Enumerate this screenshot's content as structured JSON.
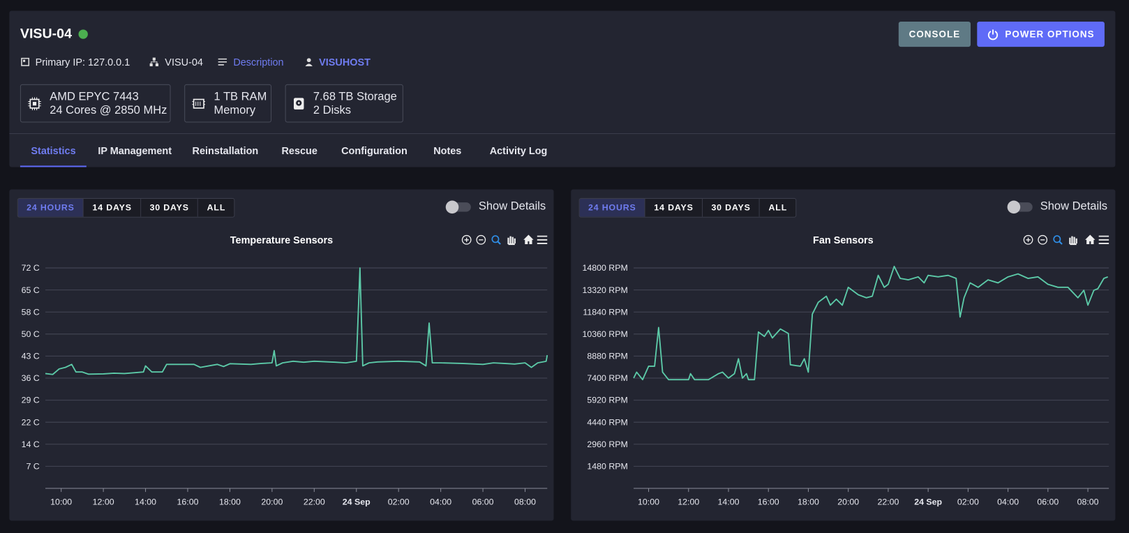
{
  "header": {
    "title": "VISU-04",
    "buttons": [
      "CONSOLE",
      "POWER OPTIONS"
    ],
    "info": {
      "ip": "Primary IP: 127.0.0.1",
      "hostname": "VISU-04",
      "description": "Description",
      "owner": "VISUHOST"
    },
    "specs": [
      {
        "line1": "AMD EPYC 7443",
        "line2": "24 Cores @ 2850 MHz"
      },
      {
        "line1": "1 TB RAM",
        "line2": "Memory"
      },
      {
        "line1": "7.68 TB Storage",
        "line2": "2 Disks"
      }
    ]
  },
  "tabs": [
    "Statistics",
    "IP Management",
    "Reinstallation",
    "Rescue",
    "Configuration",
    "Notes",
    "Activity Log"
  ],
  "panels": [
    {
      "ranges": [
        "24 HOURS",
        "14 DAYS",
        "30 DAYS",
        "ALL"
      ],
      "toggle": "Show Details"
    },
    {
      "ranges": [
        "24 HOURS",
        "14 DAYS",
        "30 DAYS",
        "ALL"
      ],
      "toggle": "Show Details"
    }
  ],
  "chart_data": [
    {
      "type": "line",
      "title": "Temperature Sensors",
      "color": "#5ccaa8",
      "grid": true,
      "xlim": [
        9.25,
        33.05
      ],
      "ylim": [
        0,
        72
      ],
      "xticks": [
        {
          "value": 10,
          "label": "10:00"
        },
        {
          "value": 12,
          "label": "12:00"
        },
        {
          "value": 14,
          "label": "14:00"
        },
        {
          "value": 16,
          "label": "16:00"
        },
        {
          "value": 18,
          "label": "18:00"
        },
        {
          "value": 20,
          "label": "20:00"
        },
        {
          "value": 22,
          "label": "22:00"
        },
        {
          "value": 24,
          "label": "24 Sep"
        },
        {
          "value": 26,
          "label": "02:00"
        },
        {
          "value": 28,
          "label": "04:00"
        },
        {
          "value": 30,
          "label": "06:00"
        },
        {
          "value": 32,
          "label": "08:00"
        }
      ],
      "yticks": [
        {
          "value": 7.2,
          "label": "7 C"
        },
        {
          "value": 14.4,
          "label": "14 C"
        },
        {
          "value": 21.6,
          "label": "22 C"
        },
        {
          "value": 28.8,
          "label": "29 C"
        },
        {
          "value": 36,
          "label": "36 C"
        },
        {
          "value": 43.2,
          "label": "43 C"
        },
        {
          "value": 50.4,
          "label": "50 C"
        },
        {
          "value": 57.6,
          "label": "58 C"
        },
        {
          "value": 64.8,
          "label": "65 C"
        },
        {
          "value": 72,
          "label": "72 C"
        }
      ],
      "x": [
        9.25,
        9.6,
        9.9,
        10.2,
        10.5,
        10.7,
        11,
        11.3,
        12,
        12.5,
        13,
        13.5,
        13.9,
        14.0,
        14.3,
        14.8,
        15.0,
        15.5,
        16.3,
        16.6,
        17,
        17.4,
        17.7,
        18.0,
        18.5,
        19,
        19.5,
        20,
        20.1,
        20.2,
        20.5,
        21,
        21.5,
        22,
        23,
        23.5,
        24.0,
        24.17,
        24.3,
        24.6,
        25,
        26,
        27,
        27.3,
        27.45,
        27.6,
        28,
        29,
        30,
        30.5,
        31,
        31.5,
        32,
        32.3,
        32.6,
        33,
        33.05
      ],
      "values": [
        37.5,
        37.2,
        39,
        39.5,
        40.5,
        38,
        38,
        37.3,
        37.4,
        37.6,
        37.5,
        37.8,
        38,
        40,
        38,
        38,
        40.5,
        40.5,
        40.5,
        39.5,
        40,
        40.5,
        39.8,
        40.7,
        40.6,
        40.5,
        40.8,
        41,
        45,
        40,
        41,
        41.5,
        41.2,
        41.5,
        41.2,
        41,
        41.5,
        72,
        40,
        41,
        41.3,
        41.5,
        41.3,
        40,
        54,
        41,
        41,
        40.8,
        40.5,
        41,
        40.8,
        40.6,
        41,
        39.5,
        41,
        41.5,
        43.5
      ]
    },
    {
      "type": "line",
      "title": "Fan Sensors",
      "color": "#5ccaa8",
      "grid": true,
      "xlim": [
        9.25,
        33.05
      ],
      "ylim": [
        0,
        14800
      ],
      "xticks": [
        {
          "value": 10,
          "label": "10:00"
        },
        {
          "value": 12,
          "label": "12:00"
        },
        {
          "value": 14,
          "label": "14:00"
        },
        {
          "value": 16,
          "label": "16:00"
        },
        {
          "value": 18,
          "label": "18:00"
        },
        {
          "value": 20,
          "label": "20:00"
        },
        {
          "value": 22,
          "label": "22:00"
        },
        {
          "value": 24,
          "label": "24 Sep"
        },
        {
          "value": 26,
          "label": "02:00"
        },
        {
          "value": 28,
          "label": "04:00"
        },
        {
          "value": 30,
          "label": "06:00"
        },
        {
          "value": 32,
          "label": "08:00"
        }
      ],
      "yticks": [
        {
          "value": 1480,
          "label": "1480 RPM"
        },
        {
          "value": 2960,
          "label": "2960 RPM"
        },
        {
          "value": 4440,
          "label": "4440 RPM"
        },
        {
          "value": 5920,
          "label": "5920 RPM"
        },
        {
          "value": 7400,
          "label": "7400 RPM"
        },
        {
          "value": 8880,
          "label": "8880 RPM"
        },
        {
          "value": 10360,
          "label": "10360 RPM"
        },
        {
          "value": 11840,
          "label": "11840 RPM"
        },
        {
          "value": 13320,
          "label": "13320 RPM"
        },
        {
          "value": 14800,
          "label": "14800 RPM"
        }
      ],
      "x": [
        9.25,
        9.4,
        9.7,
        10.0,
        10.3,
        10.5,
        10.7,
        11,
        12,
        12.1,
        12.3,
        13,
        13.5,
        13.7,
        14.0,
        14.3,
        14.5,
        14.7,
        14.9,
        15.0,
        15.3,
        15.5,
        15.8,
        16.0,
        16.2,
        16.6,
        17.0,
        17.1,
        17.6,
        17.8,
        18.0,
        18.2,
        18.5,
        18.9,
        19.1,
        19.4,
        19.7,
        20.0,
        20.5,
        20.9,
        21.2,
        21.5,
        21.8,
        22.0,
        22.3,
        22.6,
        23,
        23.5,
        23.8,
        24,
        24.5,
        25,
        25.4,
        25.6,
        25.8,
        26.1,
        26.5,
        27,
        27.5,
        28,
        28.5,
        29,
        29.5,
        30,
        30.5,
        31,
        31.5,
        31.8,
        32,
        32.3,
        32.5,
        32.8,
        33.0
      ],
      "values": [
        7400,
        7800,
        7300,
        8200,
        8200,
        10800,
        7800,
        7300,
        7300,
        7700,
        7300,
        7300,
        7700,
        7800,
        7400,
        7700,
        8700,
        7400,
        7700,
        7300,
        7300,
        10500,
        10200,
        10600,
        10100,
        10700,
        10400,
        8300,
        8200,
        8700,
        7800,
        11700,
        12500,
        12900,
        12300,
        12700,
        12300,
        13500,
        13000,
        12800,
        12900,
        14300,
        13500,
        13700,
        14900,
        14100,
        14000,
        14200,
        13800,
        14300,
        14200,
        14300,
        14100,
        11500,
        12800,
        13800,
        13500,
        14000,
        13800,
        14200,
        14400,
        14100,
        14200,
        13700,
        13500,
        13500,
        12800,
        13300,
        12300,
        13300,
        13400,
        14100,
        14200
      ]
    }
  ]
}
